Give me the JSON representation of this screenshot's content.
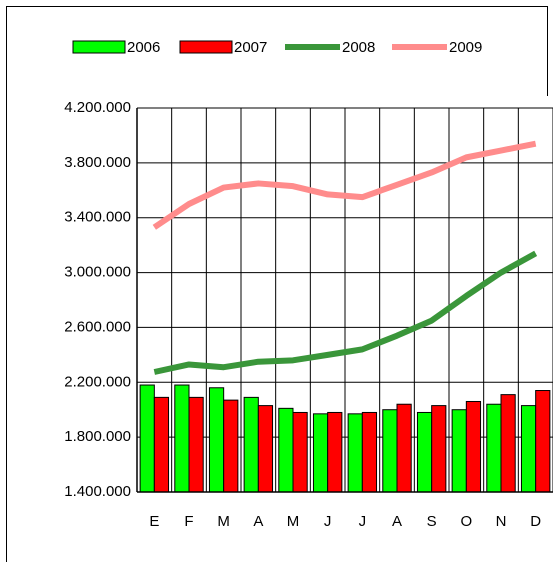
{
  "chart_data": {
    "type": "bar",
    "categories": [
      "E",
      "F",
      "M",
      "A",
      "M",
      "J",
      "J",
      "A",
      "S",
      "O",
      "N",
      "D"
    ],
    "series": [
      {
        "name": "2006",
        "type": "bar",
        "color": "#00ff00",
        "values": [
          2180000,
          2180000,
          2160000,
          2090000,
          2010000,
          1970000,
          1970000,
          2000000,
          1980000,
          2000000,
          2040000,
          2030000
        ]
      },
      {
        "name": "2007",
        "type": "bar",
        "color": "#ff0000",
        "values": [
          2090000,
          2090000,
          2070000,
          2030000,
          1980000,
          1980000,
          1980000,
          2040000,
          2030000,
          2060000,
          2110000,
          2140000
        ]
      },
      {
        "name": "2008",
        "type": "line",
        "color": "#3a963a",
        "values": [
          2275000,
          2330000,
          2310000,
          2350000,
          2360000,
          2400000,
          2440000,
          2540000,
          2650000,
          2830000,
          3000000,
          3140000
        ]
      },
      {
        "name": "2009",
        "type": "line",
        "color": "#ff8c8c",
        "values": [
          3330000,
          3500000,
          3620000,
          3650000,
          3630000,
          3570000,
          3550000,
          3640000,
          3730000,
          3840000,
          3890000,
          3940000
        ]
      }
    ],
    "ylim": [
      1400000,
      4200000
    ],
    "yticks": [
      {
        "value": 1400000,
        "label": "1.400.000"
      },
      {
        "value": 1800000,
        "label": "1.800.000"
      },
      {
        "value": 2200000,
        "label": "2.200.000"
      },
      {
        "value": 2600000,
        "label": "2.600.000"
      },
      {
        "value": 3000000,
        "label": "3.000.000"
      },
      {
        "value": 3400000,
        "label": "3.400.000"
      },
      {
        "value": 3800000,
        "label": "3.800.000"
      },
      {
        "value": 4200000,
        "label": "4.200.000"
      }
    ],
    "grid": true,
    "legend": "top"
  }
}
